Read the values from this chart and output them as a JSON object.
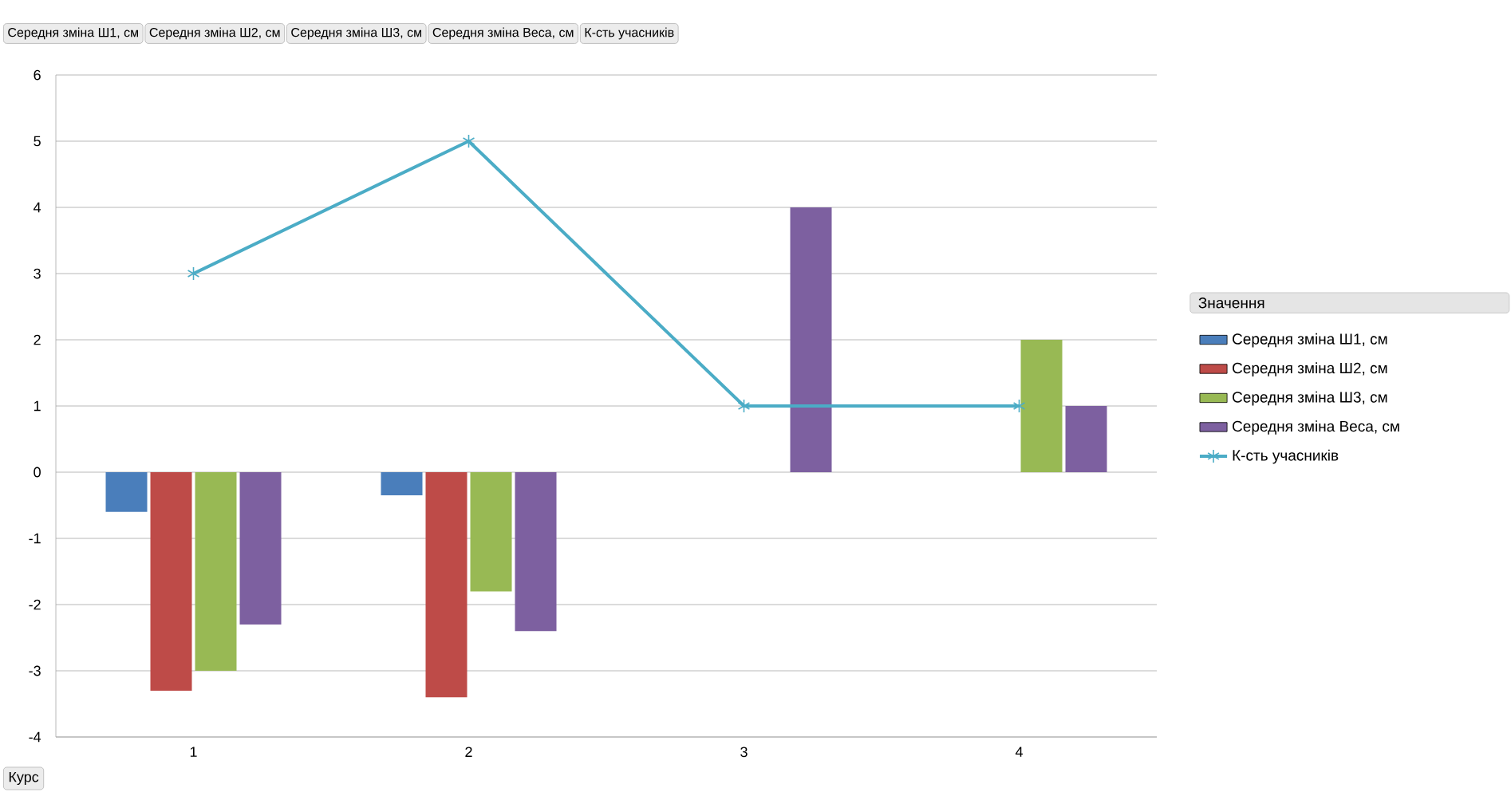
{
  "chart_data": {
    "type": "bar",
    "xlabel": "Курс",
    "legend_title": "Значення",
    "categories": [
      "1",
      "2",
      "3",
      "4"
    ],
    "series": [
      {
        "name": "Середня зміна Ш1, см",
        "color": "#4a7ebb",
        "values": [
          -0.6,
          -0.35,
          null,
          null
        ]
      },
      {
        "name": "Середня зміна Ш2, см",
        "color": "#be4b48",
        "values": [
          -3.3,
          -3.4,
          null,
          null
        ]
      },
      {
        "name": "Середня зміна Ш3, см",
        "color": "#98b954",
        "values": [
          -3.0,
          -1.8,
          null,
          2
        ]
      },
      {
        "name": "Середня зміна Веса, см",
        "color": "#7d60a0",
        "values": [
          -2.3,
          -2.4,
          4,
          1
        ]
      },
      {
        "name": "К-сть учасників",
        "color": "#4bacc6",
        "type": "line",
        "marker": "cross",
        "line_style": "solid",
        "values": [
          3,
          5,
          1,
          1
        ]
      }
    ],
    "ylim": [
      -4,
      6
    ],
    "yticks": [
      -4,
      -3,
      -2,
      -1,
      0,
      1,
      2,
      3,
      4,
      5,
      6
    ],
    "grid": "y",
    "legend": "right",
    "annotations": [
      "Середня зміна Ш1, см",
      "Середня зміна Ш2, см",
      "Середня зміна Ш3, см",
      "Середня зміна Веса, см",
      "К-сть учасників"
    ]
  }
}
